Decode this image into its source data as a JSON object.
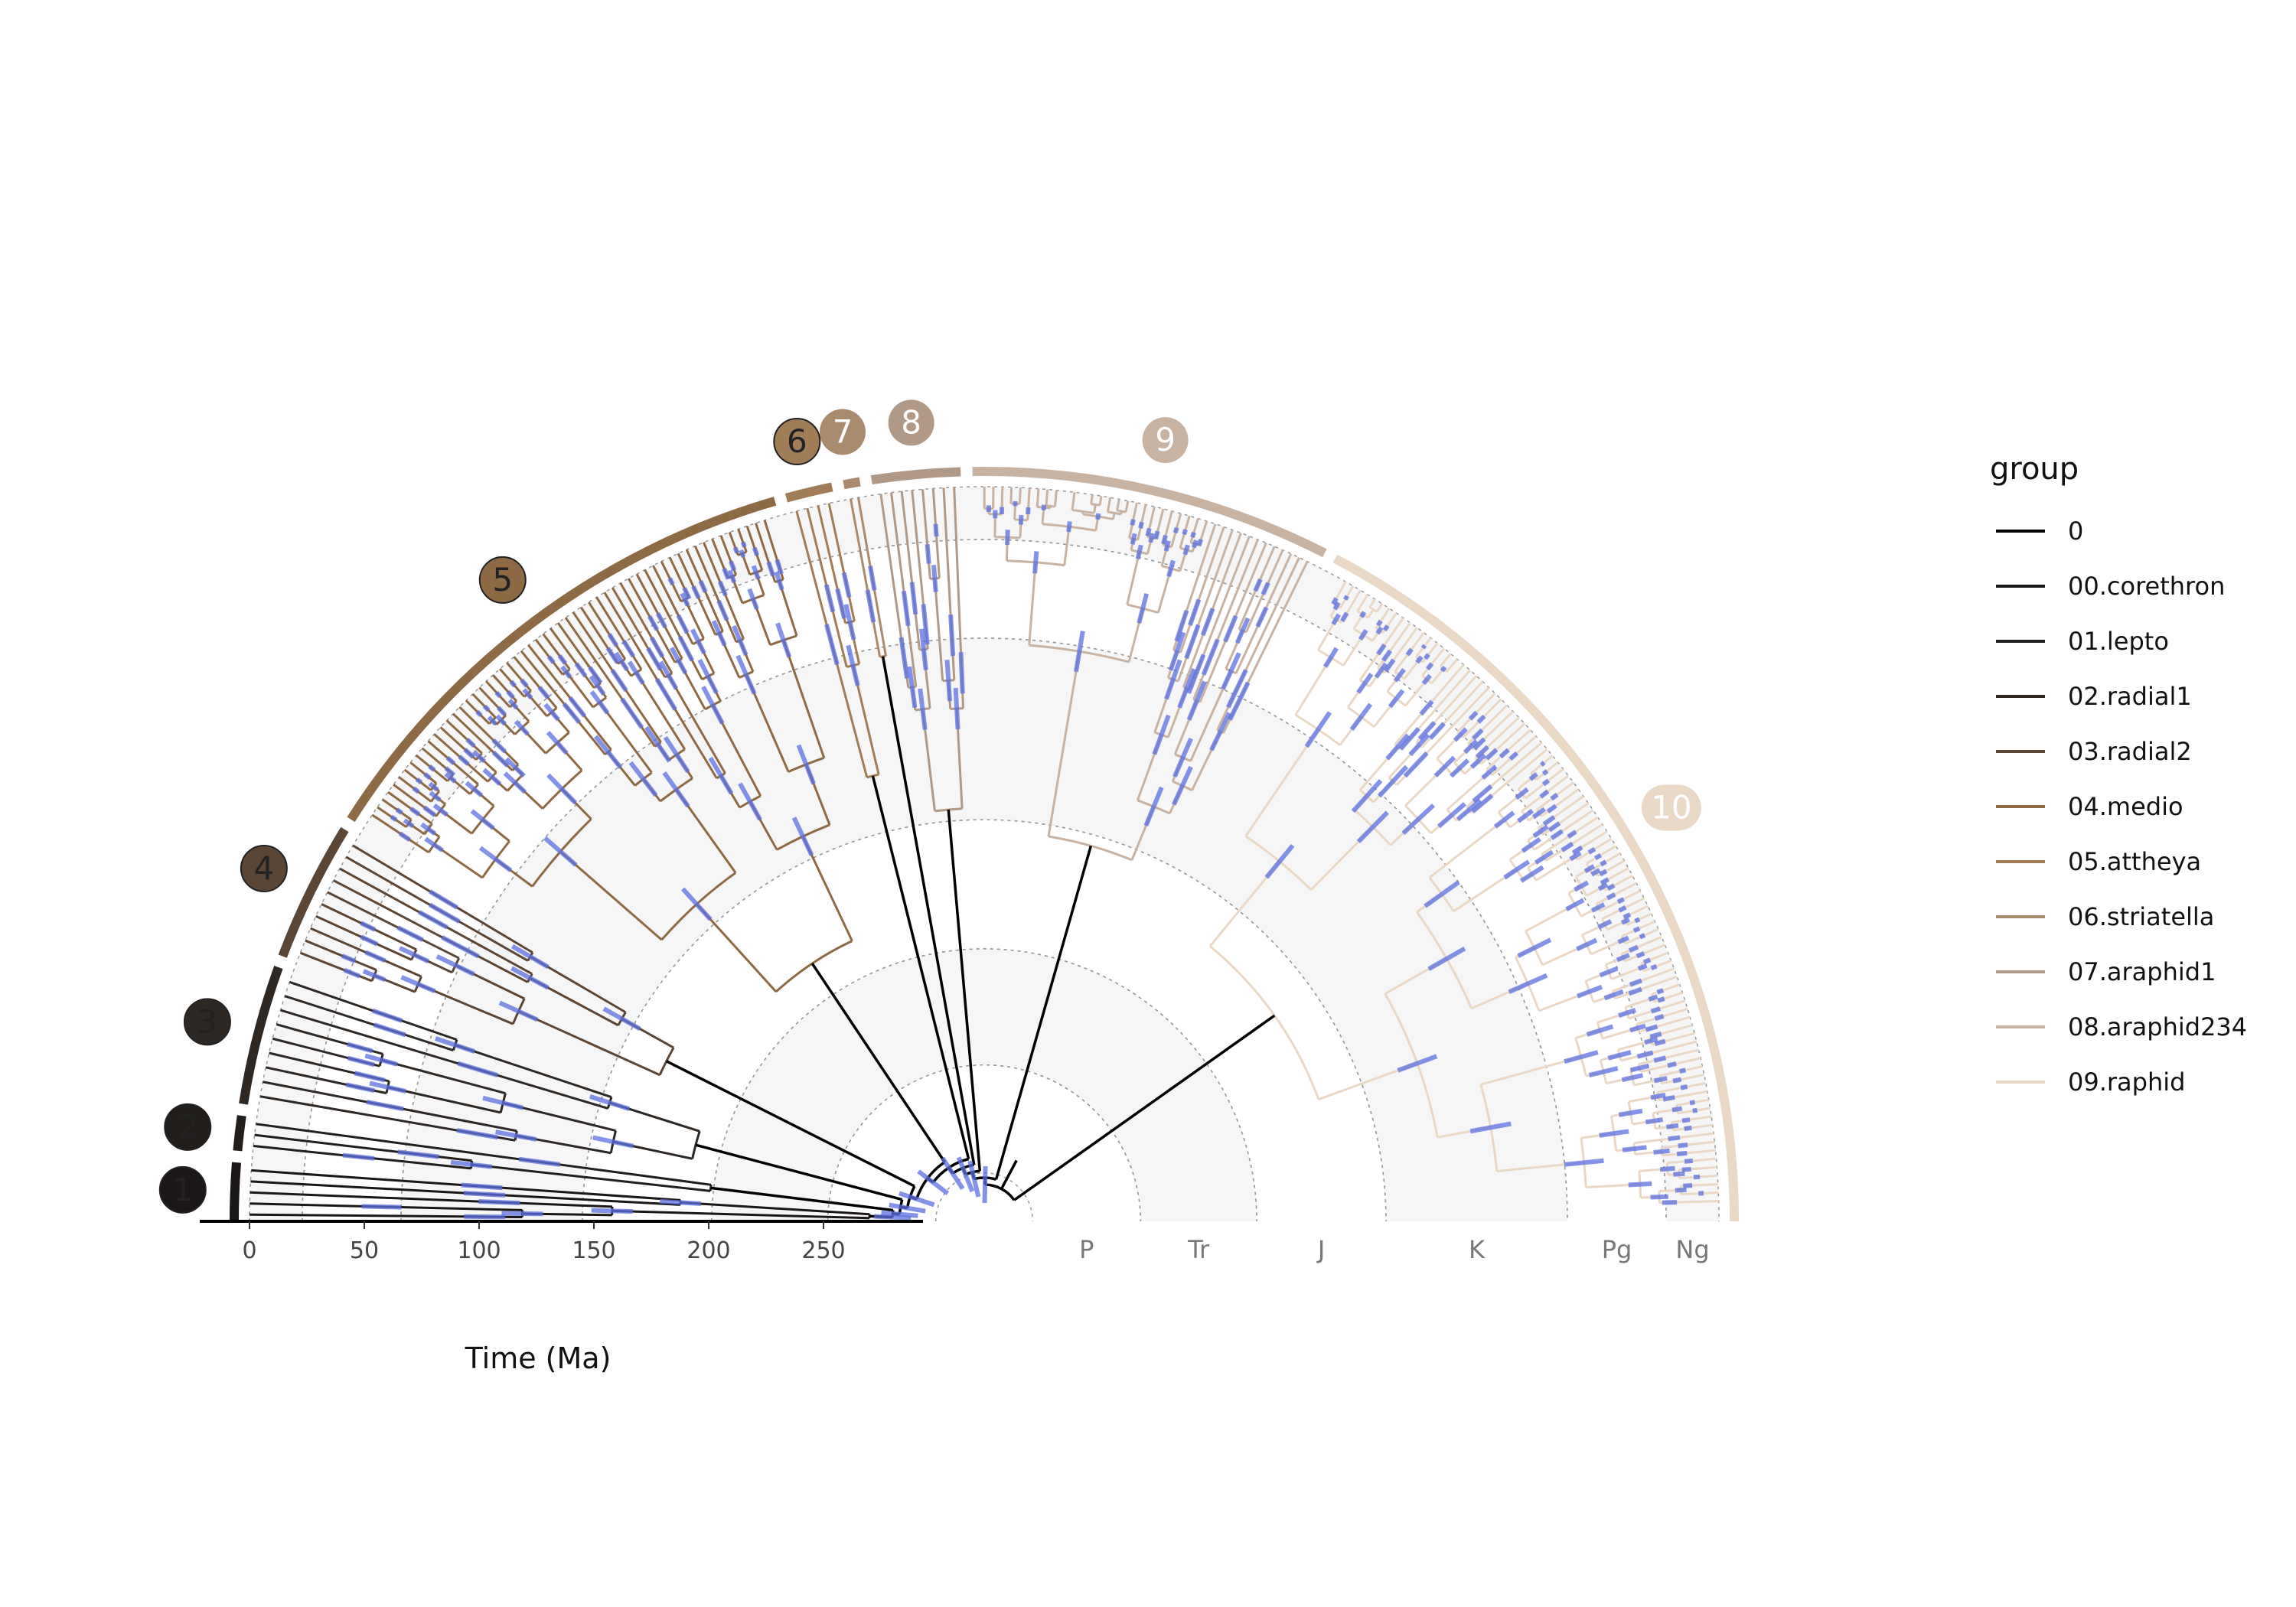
{
  "axis": {
    "title": "Time (Ma)",
    "ticks": [
      0,
      50,
      100,
      150,
      200,
      250
    ],
    "max": 290
  },
  "periods": [
    {
      "label": "P",
      "start": 298.9,
      "end": 251.9,
      "shade": false
    },
    {
      "label": "Tr",
      "start": 251.9,
      "end": 201.3,
      "shade": true
    },
    {
      "label": "J",
      "start": 201.3,
      "end": 145.0,
      "shade": false
    },
    {
      "label": "K",
      "start": 145.0,
      "end": 66.0,
      "shade": true
    },
    {
      "label": "Pg",
      "start": 66.0,
      "end": 23.0,
      "shade": false
    },
    {
      "label": "Ng",
      "start": 23.0,
      "end": 0.0,
      "shade": true
    }
  ],
  "legend": {
    "title": "group",
    "items": [
      {
        "label": "0",
        "color": "#000000"
      },
      {
        "label": "00.corethron",
        "color": "#1a1716"
      },
      {
        "label": "01.lepto",
        "color": "#221e1c"
      },
      {
        "label": "02.radial1",
        "color": "#2e2825"
      },
      {
        "label": "03.radial2",
        "color": "#5b4636"
      },
      {
        "label": "04.medio",
        "color": "#8e6a44"
      },
      {
        "label": "05.attheya",
        "color": "#a07c57"
      },
      {
        "label": "06.striatella",
        "color": "#a98a6d"
      },
      {
        "label": "07.araphid1",
        "color": "#b09a87"
      },
      {
        "label": "08.araphid234",
        "color": "#c8b3a3"
      },
      {
        "label": "09.raphid",
        "color": "#ead8c6"
      }
    ]
  },
  "clades": [
    {
      "label": "1",
      "color": "#1a1716",
      "from": 0.0,
      "to": 0.025,
      "text_color": "#222222"
    },
    {
      "label": "2",
      "color": "#221e1c",
      "from": 0.03,
      "to": 0.045,
      "text_color": "#222222"
    },
    {
      "label": "3",
      "color": "#2e2825",
      "from": 0.05,
      "to": 0.11,
      "text_color": "#222222"
    },
    {
      "label": "4",
      "color": "#5b4636",
      "from": 0.115,
      "to": 0.175,
      "text_color": "#222222"
    },
    {
      "label": "5",
      "color": "#8e6a44",
      "from": 0.18,
      "to": 0.41,
      "text_color": "#222222"
    },
    {
      "label": "6",
      "color": "#a07c57",
      "from": 0.415,
      "to": 0.435,
      "text_color": "#222222"
    },
    {
      "label": "7",
      "color": "#a98a6d",
      "from": 0.44,
      "to": 0.447,
      "text_color": "#ffffff"
    },
    {
      "label": "8",
      "color": "#b09a87",
      "from": 0.452,
      "to": 0.49,
      "text_color": "#ffffff"
    },
    {
      "label": "9",
      "color": "#c8b3a3",
      "from": 0.495,
      "to": 0.65,
      "text_color": "#ffffff"
    },
    {
      "label": "10",
      "color": "#ead8c6",
      "from": 0.655,
      "to": 1.0,
      "text_color": "#ffffff"
    }
  ],
  "colors": {
    "root": "#000000",
    "hpd": "#5b6fe0",
    "grid": "#999999",
    "shade": "#f6f6f6"
  }
}
